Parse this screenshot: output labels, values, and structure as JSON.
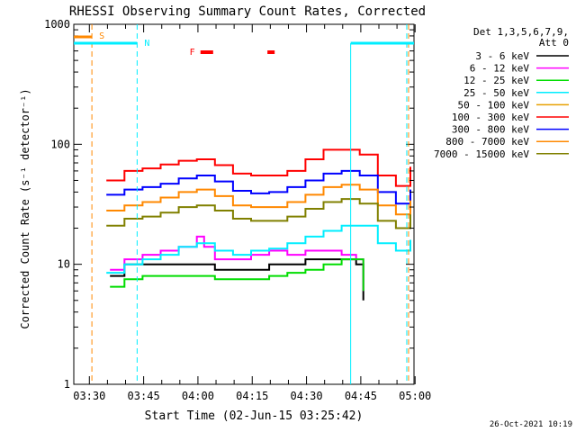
{
  "chart_data": {
    "type": "line",
    "title": "RHESSI Observing Summary Count Rates, Corrected",
    "xlabel": "Start Time (02-Jun-15 03:25:42)",
    "ylabel": "Corrected Count Rate (s⁻¹ detector⁻¹)",
    "yscale": "log",
    "ylim": [
      1,
      1000
    ],
    "xlim_minutes": [
      0,
      94
    ],
    "x_ticks": [
      {
        "label": "03:30",
        "minute": 4.3
      },
      {
        "label": "03:45",
        "minute": 19.3
      },
      {
        "label": "04:00",
        "minute": 34.3
      },
      {
        "label": "04:15",
        "minute": 49.3
      },
      {
        "label": "04:30",
        "minute": 64.3
      },
      {
        "label": "04:45",
        "minute": 79.3
      },
      {
        "label": "05:00",
        "minute": 94.3
      }
    ],
    "y_ticks": [
      {
        "label": "1",
        "value": 1
      },
      {
        "label": "10",
        "value": 10
      },
      {
        "label": "100",
        "value": 100
      },
      {
        "label": "1000",
        "value": 1000
      }
    ],
    "legend": {
      "header1": "Det 1,3,5,6,7,9,",
      "header2": "Att 0",
      "position": "right"
    },
    "series": [
      {
        "name": "3 - 6 keV",
        "color": "#000000",
        "x": [
          5,
          9,
          10,
          14,
          19,
          24,
          29,
          34,
          36,
          39,
          44,
          49,
          54,
          59,
          64,
          69,
          74,
          78,
          80
        ],
        "values": [
          null,
          null,
          8,
          10,
          10,
          10,
          10,
          10,
          10,
          9,
          9,
          9,
          10,
          10,
          11,
          11,
          11,
          10,
          5
        ]
      },
      {
        "name": "6 - 12 keV",
        "color": "#ff00ff",
        "x": [
          5,
          9,
          10,
          14,
          19,
          24,
          29,
          34,
          36,
          39,
          44,
          49,
          54,
          59,
          64,
          69,
          74,
          78,
          80
        ],
        "values": [
          null,
          null,
          9,
          11,
          12,
          13,
          14,
          17,
          14,
          11,
          11,
          12,
          13,
          12,
          13,
          13,
          12,
          11,
          6
        ]
      },
      {
        "name": "12 - 25 keV",
        "color": "#00dd00",
        "x": [
          5,
          9,
          10,
          14,
          19,
          24,
          29,
          34,
          36,
          39,
          44,
          49,
          54,
          59,
          64,
          69,
          74,
          78,
          80
        ],
        "values": [
          null,
          null,
          6.5,
          7.5,
          8,
          8,
          8,
          8,
          8,
          7.5,
          7.5,
          7.5,
          8,
          8.5,
          9,
          10,
          11,
          11,
          6
        ]
      },
      {
        "name": "25 - 50 keV",
        "color": "#00eeff",
        "x": [
          0,
          5,
          9,
          14,
          19,
          24,
          29,
          34,
          39,
          44,
          49,
          54,
          59,
          64,
          69,
          74,
          79,
          84,
          89,
          93
        ],
        "values": [
          null,
          null,
          8.5,
          10,
          11,
          12,
          14,
          15,
          13,
          12,
          13,
          13.5,
          15,
          17,
          19,
          21,
          21,
          15,
          13,
          16
        ]
      },
      {
        "name": "50 - 100 keV",
        "color": "#e8a000",
        "x": [
          5,
          9,
          14,
          19,
          24,
          29,
          34,
          39,
          44,
          49,
          54,
          59,
          64,
          69,
          74,
          79,
          84,
          89,
          93
        ],
        "values": [
          null,
          null,
          null,
          null,
          null,
          null,
          null,
          null,
          null,
          null,
          null,
          null,
          null,
          null,
          null,
          null,
          null,
          null,
          null
        ]
      },
      {
        "name": "100 - 300 keV",
        "color": "#ff0000",
        "x": [
          5,
          9,
          14,
          19,
          24,
          29,
          34,
          39,
          44,
          49,
          54,
          59,
          64,
          69,
          74,
          79,
          84,
          89,
          93
        ],
        "values": [
          null,
          50,
          60,
          63,
          68,
          73,
          75,
          67,
          57,
          55,
          55,
          60,
          75,
          90,
          90,
          82,
          55,
          45,
          65
        ]
      },
      {
        "name": "300 - 800 keV",
        "color": "#0000ff",
        "x": [
          5,
          9,
          14,
          19,
          24,
          29,
          34,
          39,
          44,
          49,
          54,
          59,
          64,
          69,
          74,
          79,
          84,
          89,
          93
        ],
        "values": [
          null,
          38,
          42,
          44,
          47,
          52,
          55,
          49,
          41,
          39,
          40,
          44,
          50,
          57,
          60,
          55,
          40,
          32,
          42
        ]
      },
      {
        "name": "800 - 7000 keV",
        "color": "#ff8800",
        "x": [
          5,
          9,
          14,
          19,
          24,
          29,
          34,
          39,
          44,
          49,
          54,
          59,
          64,
          69,
          74,
          79,
          84,
          89,
          93
        ],
        "values": [
          null,
          28,
          31,
          33,
          36,
          40,
          42,
          37,
          31,
          30,
          30,
          33,
          38,
          44,
          46,
          42,
          31,
          26,
          34
        ]
      },
      {
        "name": "7000 - 15000 keV",
        "color": "#808000",
        "x": [
          5,
          9,
          14,
          19,
          24,
          29,
          34,
          39,
          44,
          49,
          54,
          59,
          64,
          69,
          74,
          79,
          84,
          89,
          93
        ],
        "values": [
          null,
          21,
          24,
          25,
          27,
          30,
          31,
          28,
          24,
          23,
          23,
          25,
          29,
          33,
          35,
          32,
          23,
          20,
          26
        ]
      }
    ],
    "annotations": [
      {
        "label": "S",
        "color": "#ff8800",
        "kind": "SAA"
      },
      {
        "label": "N",
        "color": "#00eeff",
        "kind": "Night"
      },
      {
        "label": "F",
        "color": "#ff0000",
        "kind": "Flare"
      }
    ],
    "timestamp": "26-Oct-2021 10:19"
  }
}
